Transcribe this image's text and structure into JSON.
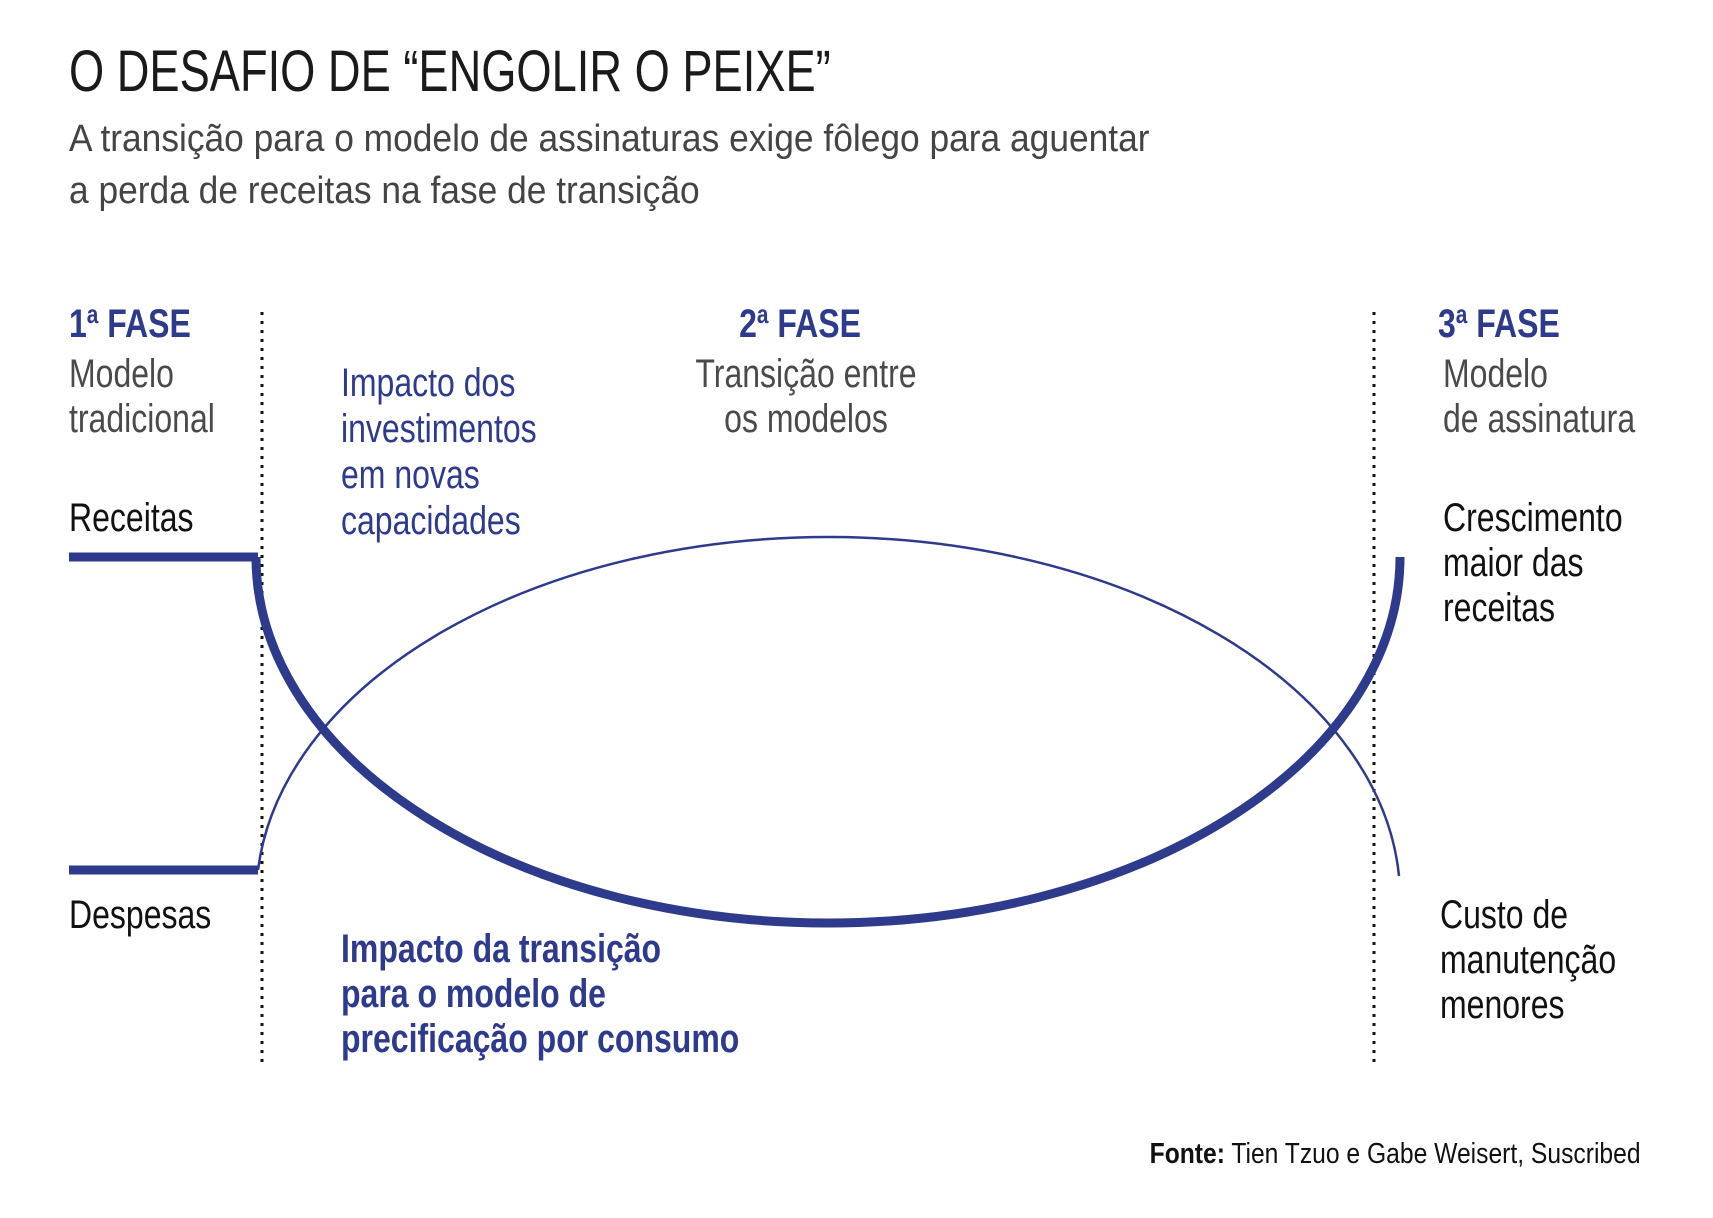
{
  "title": "O DESAFIO DE “ENGOLIR O PEIXE”",
  "subtitle": [
    "A transição para o modelo de assinaturas exige fôlego para aguentar",
    "a perda de receitas na fase de transição"
  ],
  "phases": [
    {
      "number": "1",
      "ordinal": "a",
      "label": "FASE",
      "desc": [
        "Modelo",
        "tradicional"
      ]
    },
    {
      "number": "2",
      "ordinal": "a",
      "label": "FASE",
      "desc": [
        "Transição entre",
        "os modelos"
      ]
    },
    {
      "number": "3",
      "ordinal": "a",
      "label": "FASE",
      "desc": [
        "Modelo",
        "de assinatura"
      ]
    }
  ],
  "labels": {
    "receitas": "Receitas",
    "despesas": "Despesas",
    "investimentos": [
      "Impacto dos",
      "investimentos",
      "em novas",
      "capacidades"
    ],
    "transicao": [
      "Impacto da transição",
      "para o modelo de",
      "precificação por consumo"
    ],
    "crescimento": [
      "Crescimento",
      "maior das",
      "receitas"
    ],
    "custo": [
      "Custo de",
      "manutenção",
      "menores"
    ]
  },
  "source": {
    "label": "Fonte:",
    "text": " Tien Tzuo e Gabe Weisert, Suscribed"
  },
  "colors": {
    "accent": "#2e3a8c",
    "text": "#111111",
    "muted": "#4a4a4a"
  }
}
